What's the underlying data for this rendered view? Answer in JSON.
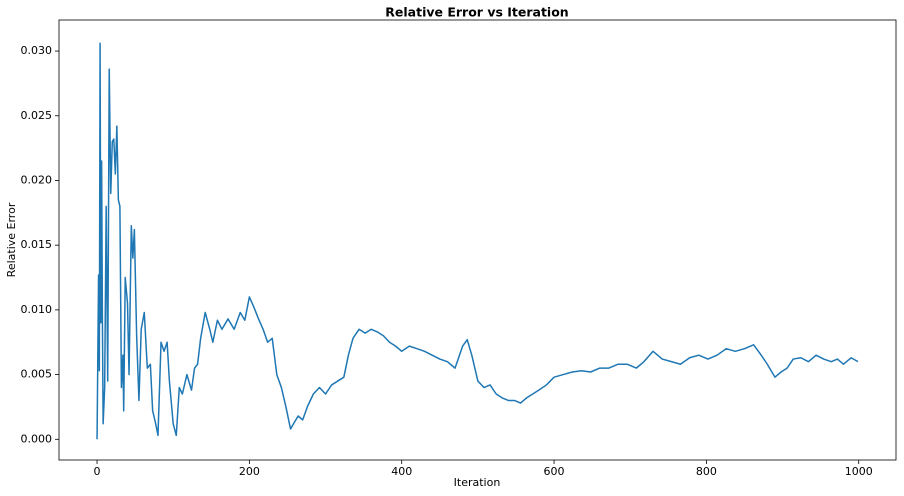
{
  "chart_data": {
    "type": "line",
    "title": "Relative Error vs Iteration",
    "x_label": "Iteration",
    "y_label": "Relative Error",
    "x": [
      0,
      2,
      3,
      4,
      5,
      6,
      7,
      8,
      10,
      12,
      14,
      16,
      18,
      20,
      22,
      24,
      26,
      28,
      30,
      32,
      34,
      35,
      37,
      40,
      42,
      45,
      47,
      49,
      52,
      55,
      58,
      62,
      66,
      70,
      73,
      77,
      80,
      84,
      88,
      92,
      95,
      100,
      104,
      108,
      112,
      118,
      124,
      128,
      132,
      136,
      142,
      148,
      152,
      158,
      164,
      172,
      180,
      188,
      194,
      200,
      206,
      212,
      218,
      224,
      230,
      236,
      242,
      248,
      254,
      258,
      264,
      270,
      276,
      284,
      292,
      300,
      308,
      316,
      324,
      330,
      336,
      344,
      352,
      360,
      368,
      376,
      384,
      392,
      400,
      410,
      420,
      430,
      440,
      450,
      460,
      470,
      480,
      486,
      492,
      500,
      508,
      516,
      524,
      532,
      540,
      548,
      556,
      564,
      572,
      580,
      590,
      600,
      612,
      624,
      636,
      648,
      660,
      672,
      684,
      696,
      708,
      718,
      730,
      742,
      754,
      766,
      778,
      790,
      802,
      814,
      826,
      838,
      850,
      862,
      872,
      880,
      890,
      898,
      906,
      914,
      924,
      934,
      944,
      954,
      964,
      972,
      980,
      990,
      999
    ],
    "series": [
      {
        "name": "Relative Error",
        "color": "#1f77b4",
        "values": [
          0,
          0.0127,
          0.0053,
          0.0306,
          0.009,
          0.0215,
          0.0095,
          0.0012,
          0.004,
          0.018,
          0.0045,
          0.0286,
          0.019,
          0.023,
          0.0232,
          0.0205,
          0.0242,
          0.0185,
          0.018,
          0.004,
          0.0065,
          0.0022,
          0.0125,
          0.0105,
          0.005,
          0.0165,
          0.014,
          0.0162,
          0.008,
          0.003,
          0.0085,
          0.0098,
          0.0055,
          0.0058,
          0.0022,
          0.0012,
          0.0003,
          0.0075,
          0.0068,
          0.0075,
          0.0045,
          0.0012,
          0.0003,
          0.004,
          0.0035,
          0.005,
          0.0038,
          0.0055,
          0.0058,
          0.0078,
          0.0098,
          0.0085,
          0.0075,
          0.0092,
          0.0085,
          0.0093,
          0.0085,
          0.0098,
          0.0092,
          0.011,
          0.0102,
          0.0093,
          0.0085,
          0.0075,
          0.0078,
          0.005,
          0.004,
          0.0025,
          0.0008,
          0.0012,
          0.0018,
          0.0015,
          0.0025,
          0.0035,
          0.004,
          0.0035,
          0.0042,
          0.0045,
          0.0048,
          0.0065,
          0.0078,
          0.0085,
          0.0082,
          0.0085,
          0.0083,
          0.008,
          0.0075,
          0.0072,
          0.0068,
          0.0072,
          0.007,
          0.0068,
          0.0065,
          0.0062,
          0.006,
          0.0055,
          0.0072,
          0.0077,
          0.0065,
          0.0045,
          0.004,
          0.0042,
          0.0035,
          0.0032,
          0.003,
          0.003,
          0.0028,
          0.0032,
          0.0035,
          0.0038,
          0.0042,
          0.0048,
          0.005,
          0.0052,
          0.0053,
          0.0052,
          0.0055,
          0.0055,
          0.0058,
          0.0058,
          0.0055,
          0.006,
          0.0068,
          0.0062,
          0.006,
          0.0058,
          0.0063,
          0.0065,
          0.0062,
          0.0065,
          0.007,
          0.0068,
          0.007,
          0.0073,
          0.0065,
          0.0058,
          0.0048,
          0.0052,
          0.0055,
          0.0062,
          0.0063,
          0.006,
          0.0065,
          0.0062,
          0.006,
          0.0062,
          0.0058,
          0.0063,
          0.006
        ]
      }
    ],
    "xlim": [
      -49.95,
      1048.95
    ],
    "xticks": [
      0,
      200,
      400,
      600,
      800,
      1000
    ],
    "ylim": [
      -0.0016,
      0.0324
    ],
    "yticks": [
      {
        "value": 0,
        "label": "0.000"
      },
      0.005,
      {
        "value": 0.01,
        "label": "0.010"
      },
      0.015,
      {
        "value": 0.02,
        "label": "0.020"
      },
      0.025,
      {
        "value": 0.03,
        "label": "0.030"
      }
    ],
    "grid": false
  }
}
